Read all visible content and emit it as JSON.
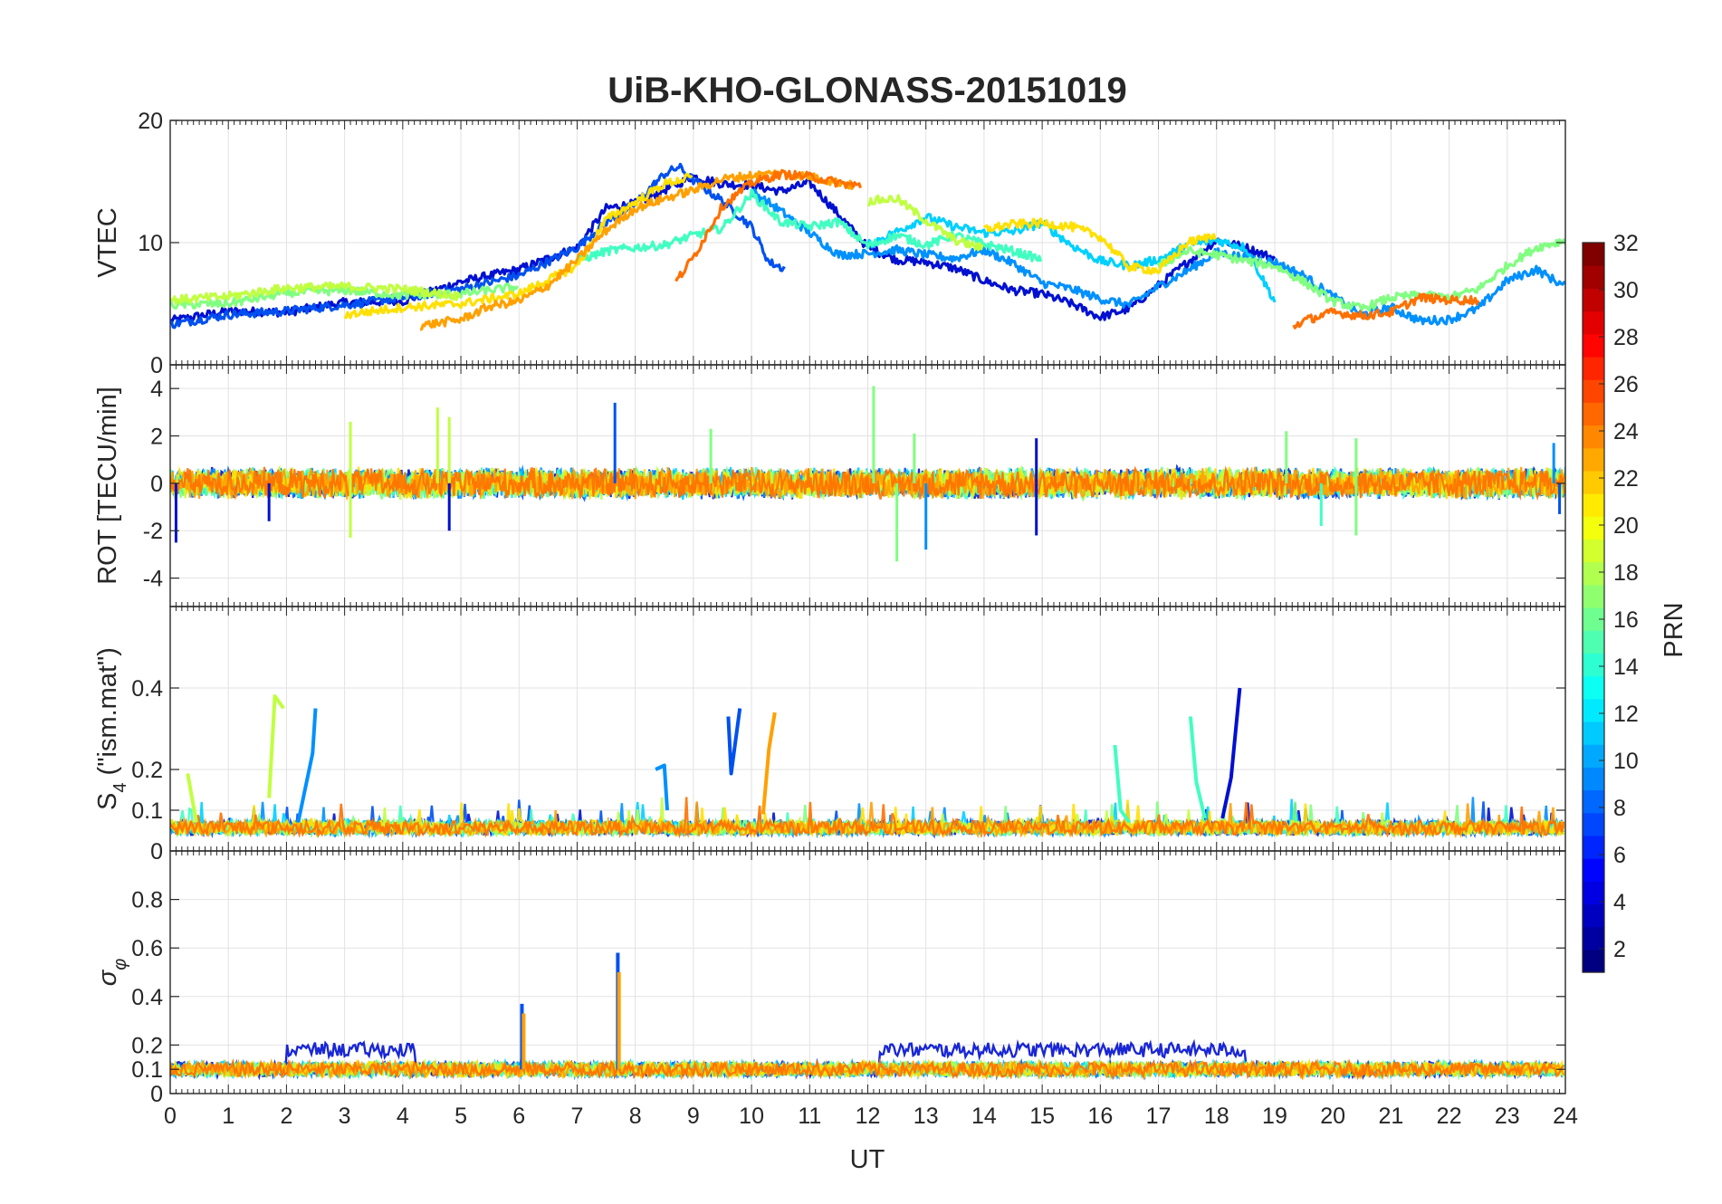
{
  "title": "UiB-KHO-GLONASS-20151019",
  "x_axis": {
    "label": "UT",
    "range": [
      0,
      24
    ],
    "tick_labels": [
      "0",
      "1",
      "2",
      "3",
      "4",
      "5",
      "6",
      "7",
      "8",
      "9",
      "10",
      "11",
      "12",
      "13",
      "14",
      "15",
      "16",
      "17",
      "18",
      "19",
      "20",
      "21",
      "22",
      "23",
      "24"
    ]
  },
  "colorbar": {
    "label": "PRN",
    "range": [
      1,
      32
    ],
    "colormap": "jet",
    "tick_labels": [
      "2",
      "4",
      "6",
      "8",
      "10",
      "12",
      "14",
      "16",
      "18",
      "20",
      "22",
      "24",
      "26",
      "28",
      "30",
      "32"
    ]
  },
  "chart_data": [
    {
      "type": "line",
      "panel": "vtec",
      "ylabel": "VTEC",
      "ylim": [
        0,
        20
      ],
      "ytick_labels": [
        "0",
        "10",
        "20"
      ],
      "grid": true,
      "series": [
        {
          "prn": 3,
          "color": "#0010d0",
          "x": [
            0,
            1,
            2,
            3,
            4,
            5,
            6,
            7,
            7.5,
            8,
            8.5,
            9,
            9.5,
            10,
            10.5,
            11,
            11.5,
            12,
            12.5,
            13,
            13.5,
            14,
            14.5,
            15,
            15.5,
            16,
            16.5,
            17,
            17.5,
            18,
            18.5,
            19
          ],
          "y": [
            3.6,
            4.4,
            4.3,
            5.1,
            5.2,
            6.8,
            7.8,
            9.6,
            12.8,
            13.2,
            14.3,
            15.4,
            14.8,
            14.7,
            14.2,
            14.9,
            12.3,
            9.6,
            8.6,
            8.4,
            7.9,
            6.9,
            6.1,
            5.8,
            5.0,
            3.9,
            4.6,
            6.5,
            8.4,
            10.2,
            9.6,
            8.7
          ]
        },
        {
          "prn": 6,
          "color": "#0050f0",
          "x": [
            0,
            1,
            2,
            3,
            4,
            5,
            6,
            7,
            7.5,
            8,
            8.5,
            8.75,
            9,
            9.5,
            10,
            10.3,
            10.6
          ],
          "y": [
            3.3,
            4.1,
            4.4,
            4.9,
            5.5,
            6.2,
            7.3,
            9.6,
            11.7,
            13.2,
            15.6,
            16.2,
            15.1,
            13.4,
            11.3,
            8.4,
            7.8
          ]
        },
        {
          "prn": 9,
          "color": "#0090ff",
          "x": [
            10,
            10.5,
            11,
            11.5,
            12,
            12.5,
            13,
            13.5,
            14,
            14.5,
            15,
            15.5,
            16,
            16.5,
            17,
            17.5,
            18,
            18.5,
            19,
            19.5,
            20,
            20.5,
            21,
            21.5,
            22,
            22.5,
            23,
            23.5,
            24
          ],
          "y": [
            14.2,
            12.6,
            10.8,
            9.0,
            9.1,
            9.4,
            9.0,
            8.7,
            9.4,
            8.3,
            6.7,
            6.2,
            5.4,
            4.9,
            6.4,
            7.7,
            9.2,
            8.8,
            8.4,
            7.3,
            5.6,
            4.1,
            4.7,
            3.6,
            3.7,
            4.6,
            6.9,
            7.8,
            6.4
          ]
        },
        {
          "prn": 12,
          "color": "#00d0ff",
          "x": [
            12,
            12.5,
            13,
            13.5,
            14,
            14.5,
            15,
            15.5,
            16,
            16.5,
            17,
            17.5,
            18,
            18.5,
            19
          ],
          "y": [
            9.8,
            10.9,
            12.1,
            11.3,
            10.8,
            10.9,
            11.6,
            9.8,
            8.5,
            8.1,
            8.6,
            9.8,
            10.2,
            9.6,
            5.2
          ]
        },
        {
          "prn": 15,
          "color": "#40ffc0",
          "x": [
            7,
            7.5,
            8,
            8.5,
            9,
            9.5,
            10,
            10.5,
            11,
            11.5,
            12,
            12.5,
            13,
            13.5,
            14,
            14.5,
            15
          ],
          "y": [
            8.5,
            9.3,
            9.6,
            9.8,
            10.6,
            11.2,
            14.0,
            11.7,
            11.3,
            11.7,
            9.7,
            10.6,
            9.8,
            10.6,
            9.9,
            9.3,
            8.6
          ]
        },
        {
          "prn": 17,
          "color": "#80ff80",
          "x": [
            0,
            1,
            2,
            3,
            4,
            5,
            6,
            17,
            17.5,
            18,
            18.5,
            19,
            19.5,
            20,
            20.5,
            21,
            21.5,
            22,
            22.5,
            23,
            23.5,
            24
          ],
          "y": [
            4.9,
            5.0,
            5.9,
            6.1,
            5.7,
            5.8,
            6.4,
            8.1,
            9.3,
            9.0,
            8.5,
            8.1,
            6.8,
            5.2,
            4.6,
            5.5,
            5.7,
            5.5,
            6.2,
            8.1,
            9.6,
            10.2
          ]
        },
        {
          "prn": 19,
          "color": "#c0ff40",
          "x": [
            0,
            1,
            2,
            3,
            4,
            5,
            12,
            12.5,
            13,
            13.5,
            14
          ],
          "y": [
            5.3,
            5.6,
            6.3,
            6.4,
            6.2,
            5.6,
            13.4,
            13.6,
            11.8,
            10.2,
            9.5
          ]
        },
        {
          "prn": 21,
          "color": "#ffe000",
          "x": [
            3,
            4,
            5,
            6,
            7,
            7.5,
            8,
            8.5,
            9,
            14,
            14.5,
            15,
            15.5,
            16,
            16.5,
            17,
            17.5,
            18
          ],
          "y": [
            4.1,
            4.7,
            5.0,
            5.8,
            8.1,
            11.9,
            13.3,
            14.8,
            15.4,
            11.1,
            11.5,
            11.6,
            11.3,
            10.5,
            8.0,
            7.7,
            10.0,
            10.6
          ]
        },
        {
          "prn": 23,
          "color": "#ffa000",
          "x": [
            4.3,
            5,
            5.5,
            6,
            6.5,
            7,
            7.5,
            8,
            8.5,
            9,
            9.5,
            10,
            10.5,
            11,
            11.5,
            11.8
          ],
          "y": [
            3.2,
            3.7,
            4.8,
            5.2,
            6.5,
            8.6,
            11.0,
            12.8,
            13.6,
            14.3,
            15.2,
            15.5,
            15.7,
            15.4,
            14.9,
            14.6
          ]
        },
        {
          "prn": 24,
          "color": "#ff7000",
          "x": [
            8.7,
            9,
            9.5,
            10,
            10.5,
            11,
            11.5,
            11.9,
            19.3,
            19.5,
            20,
            20.5,
            21,
            21.5,
            22,
            22.5
          ],
          "y": [
            6.8,
            8.8,
            13.0,
            14.9,
            15.6,
            15.4,
            14.9,
            14.6,
            3.1,
            3.6,
            4.3,
            4.0,
            4.3,
            5.5,
            5.3,
            5.3
          ]
        }
      ]
    },
    {
      "type": "line",
      "panel": "rot",
      "ylabel": "ROT [TECU/min]",
      "ylim": [
        -5.2,
        5
      ],
      "ytick_labels": [
        "-4",
        "-2",
        "0",
        "2",
        "4"
      ],
      "grid": true,
      "noise_note": "dense oscillation around 0 for all satellites",
      "spikes": [
        {
          "x": 0.1,
          "y": -2.5,
          "color": "#0010d0"
        },
        {
          "x": 1.7,
          "y": -1.6,
          "color": "#0010d0"
        },
        {
          "x": 3.1,
          "y": 2.6,
          "color": "#c0ff40"
        },
        {
          "x": 3.1,
          "y": -2.3,
          "color": "#c0ff40"
        },
        {
          "x": 4.6,
          "y": 3.2,
          "color": "#c0ff40"
        },
        {
          "x": 4.8,
          "y": 2.8,
          "color": "#c0ff40"
        },
        {
          "x": 4.8,
          "y": -2.0,
          "color": "#0010d0"
        },
        {
          "x": 7.65,
          "y": 3.4,
          "color": "#0050f0"
        },
        {
          "x": 9.3,
          "y": 2.3,
          "color": "#80ff80"
        },
        {
          "x": 12.1,
          "y": 4.1,
          "color": "#80ff80"
        },
        {
          "x": 12.5,
          "y": -3.3,
          "color": "#80ff80"
        },
        {
          "x": 12.8,
          "y": 2.1,
          "color": "#80ff80"
        },
        {
          "x": 13.0,
          "y": -2.8,
          "color": "#0090ff"
        },
        {
          "x": 14.9,
          "y": -2.2,
          "color": "#0010d0"
        },
        {
          "x": 14.9,
          "y": 1.9,
          "color": "#0010d0"
        },
        {
          "x": 19.2,
          "y": 2.2,
          "color": "#80ff80"
        },
        {
          "x": 19.8,
          "y": -1.8,
          "color": "#40ffc0"
        },
        {
          "x": 20.4,
          "y": 1.9,
          "color": "#80ff80"
        },
        {
          "x": 20.4,
          "y": -2.2,
          "color": "#80ff80"
        },
        {
          "x": 23.8,
          "y": 1.7,
          "color": "#0090ff"
        },
        {
          "x": 23.9,
          "y": -1.3,
          "color": "#0050f0"
        }
      ]
    },
    {
      "type": "line",
      "panel": "s4",
      "ylabel": "S4 (\"ism.mat\")",
      "ylabel_main": "S",
      "ylabel_sub": "4",
      "ylabel_rest": " (\"ism.mat\")",
      "ylim": [
        0,
        0.6
      ],
      "ytick_labels": [
        "0",
        "0.1",
        "0.2",
        "0.4"
      ],
      "grid": true,
      "baseline": 0.05,
      "events": [
        {
          "x": [
            0.3,
            0.45
          ],
          "y": [
            0.19,
            0.07
          ],
          "color": "#c0ff40"
        },
        {
          "x": [
            1.7,
            1.8,
            1.95
          ],
          "y": [
            0.13,
            0.38,
            0.35
          ],
          "color": "#c0ff40"
        },
        {
          "x": [
            2.2,
            2.45,
            2.5
          ],
          "y": [
            0.07,
            0.24,
            0.35
          ],
          "color": "#0090ff"
        },
        {
          "x": [
            8.35,
            8.5,
            8.55
          ],
          "y": [
            0.2,
            0.21,
            0.1
          ],
          "color": "#0090ff"
        },
        {
          "x": [
            9.6,
            9.65,
            9.8
          ],
          "y": [
            0.33,
            0.19,
            0.35
          ],
          "color": "#0050f0"
        },
        {
          "x": [
            10.2,
            10.3,
            10.4
          ],
          "y": [
            0.09,
            0.25,
            0.34
          ],
          "color": "#ffa000"
        },
        {
          "x": [
            16.25,
            16.35,
            16.5
          ],
          "y": [
            0.26,
            0.1,
            0.07
          ],
          "color": "#40ffc0"
        },
        {
          "x": [
            17.55,
            17.65,
            17.8
          ],
          "y": [
            0.33,
            0.17,
            0.08
          ],
          "color": "#40ffc0"
        },
        {
          "x": [
            18.1,
            18.25,
            18.4
          ],
          "y": [
            0.08,
            0.18,
            0.4
          ],
          "color": "#0010d0"
        }
      ]
    },
    {
      "type": "line",
      "panel": "sigma_phi",
      "ylabel": "σφ",
      "ylabel_main": "σ",
      "ylabel_sub": "φ",
      "ylim": [
        0,
        1
      ],
      "ytick_labels": [
        "0",
        "0.1",
        "0.2",
        "0.4",
        "0.6",
        "0.8"
      ],
      "grid": true,
      "baseline": 0.1,
      "elevated_band": {
        "ranges": [
          [
            2,
            4.2
          ],
          [
            12.2,
            18.5
          ]
        ],
        "level": 0.18,
        "color": "#0010d0"
      },
      "spikes": [
        {
          "x": 6.05,
          "y": 0.37,
          "color": "#0050f0"
        },
        {
          "x": 6.08,
          "y": 0.33,
          "color": "#ffa000"
        },
        {
          "x": 7.7,
          "y": 0.58,
          "color": "#0050f0"
        },
        {
          "x": 7.72,
          "y": 0.5,
          "color": "#ffa000"
        }
      ]
    }
  ]
}
